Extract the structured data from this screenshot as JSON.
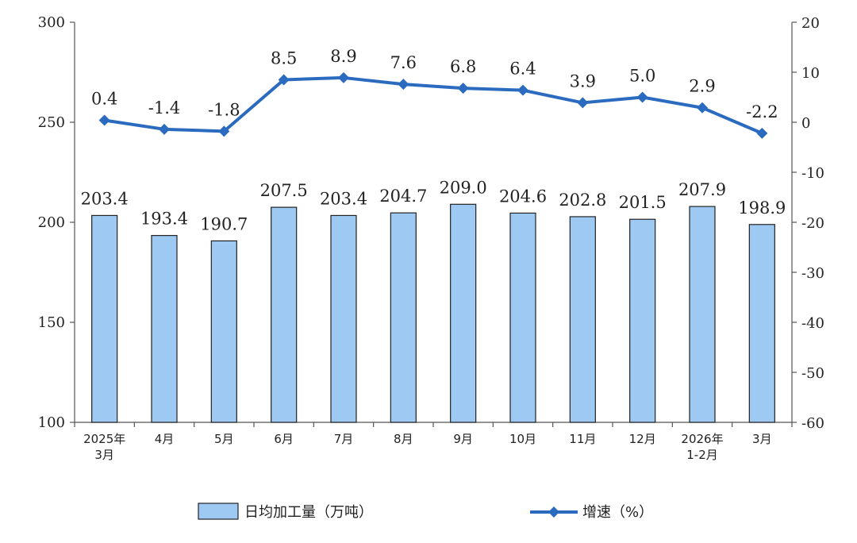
{
  "chart_data": {
    "type": "bar+line",
    "categories": [
      [
        "2025年",
        "3月"
      ],
      [
        "4月"
      ],
      [
        "5月"
      ],
      [
        "6月"
      ],
      [
        "7月"
      ],
      [
        "8月"
      ],
      [
        "9月"
      ],
      [
        "10月"
      ],
      [
        "11月"
      ],
      [
        "12月"
      ],
      [
        "2026年",
        "1-2月"
      ],
      [
        "3月"
      ]
    ],
    "series": [
      {
        "name": "日均加工量（万吨）",
        "type": "bar",
        "axis": "left",
        "values": [
          203.4,
          193.4,
          190.7,
          207.5,
          203.4,
          204.7,
          209.0,
          204.6,
          202.8,
          201.5,
          207.9,
          198.9
        ],
        "labels": [
          "203.4",
          "193.4",
          "190.7",
          "207.5",
          "203.4",
          "204.7",
          "209.0",
          "204.6",
          "202.8",
          "201.5",
          "207.9",
          "198.9"
        ],
        "color": "#9dc9f2",
        "stroke": "#222222"
      },
      {
        "name": "增速（%）",
        "type": "line",
        "axis": "right",
        "values": [
          0.4,
          -1.4,
          -1.8,
          8.5,
          8.9,
          7.6,
          6.8,
          6.4,
          3.9,
          5.0,
          2.9,
          -2.2
        ],
        "labels": [
          "0.4",
          "-1.4",
          "-1.8",
          "8.5",
          "8.9",
          "7.6",
          "6.8",
          "6.4",
          "3.9",
          "5.0",
          "2.9",
          "-2.2"
        ],
        "color": "#2a6bc0"
      }
    ],
    "y_left": {
      "min": 100,
      "max": 300,
      "ticks": [
        "100",
        "150",
        "200",
        "250",
        "300"
      ]
    },
    "y_right": {
      "min": -60,
      "max": 20,
      "ticks": [
        "-60",
        "-50",
        "-40",
        "-30",
        "-20",
        "-10",
        "0",
        "10",
        "20"
      ]
    },
    "grid": false,
    "legend": {
      "placement": "bottom",
      "items": [
        "日均加工量（万吨）",
        "增速（%）"
      ]
    }
  }
}
